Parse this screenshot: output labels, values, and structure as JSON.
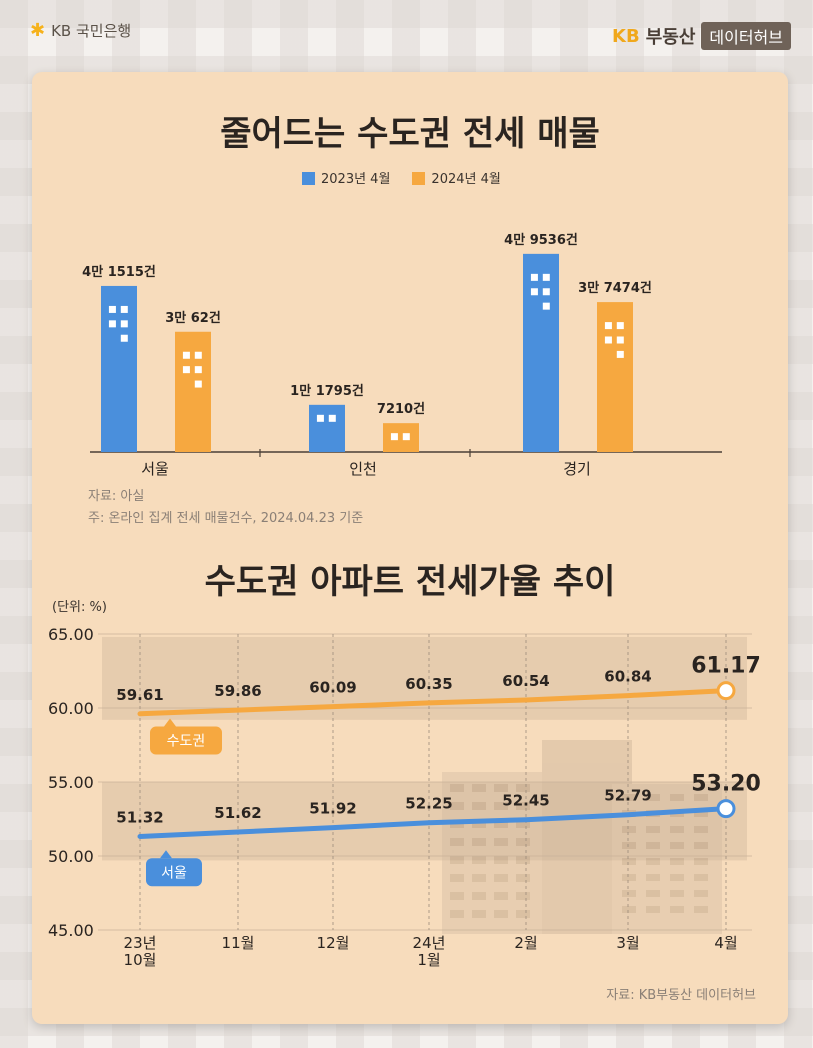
{
  "brand": {
    "bank": "KB 국민은행",
    "kb": "KB",
    "platform": "부동산",
    "hub": "데이터허브"
  },
  "chart1": {
    "title": "줄어드는 수도권 전세 매물",
    "source_line1": "자료: 아실",
    "source_line2": "주: 온라인 집계 전세 매물건수, 2024.04.23 기준"
  },
  "chart2": {
    "title": "수도권 아파트 전세가율 추이",
    "unit": "(단위: %)",
    "source": "자료: KB부동산 데이터허브"
  },
  "chart_data": [
    {
      "type": "bar",
      "title": "줄어드는 수도권 전세 매물",
      "categories": [
        "서울",
        "인천",
        "경기"
      ],
      "series": [
        {
          "name": "2023년 4월",
          "color": "#4a8fdc",
          "values": [
            41515,
            11795,
            49536
          ],
          "labels": [
            "4만 1515건",
            "1만 1795건",
            "4만 9536건"
          ]
        },
        {
          "name": "2024년 4월",
          "color": "#f6a840",
          "values": [
            30062,
            7210,
            37474
          ],
          "labels": [
            "3만 62건",
            "7210건",
            "3만 7474건"
          ]
        }
      ],
      "ylim": [
        0,
        50000
      ]
    },
    {
      "type": "line",
      "title": "수도권 아파트 전세가율 추이",
      "ylabel": "(단위: %)",
      "categories": [
        "23년\n10월",
        "11월",
        "12월",
        "24년\n1월",
        "2월",
        "3월",
        "4월"
      ],
      "y_ticks": [
        "65.00",
        "60.00",
        "55.00",
        "50.00",
        "45.00"
      ],
      "ylim": [
        45,
        65
      ],
      "series": [
        {
          "name": "수도권",
          "color": "#f6a840",
          "values": [
            59.61,
            59.86,
            60.09,
            60.35,
            60.54,
            60.84,
            61.17
          ],
          "labels": [
            "59.61",
            "59.86",
            "60.09",
            "60.35",
            "60.54",
            "60.84",
            "61.17"
          ]
        },
        {
          "name": "서울",
          "color": "#4a8fdc",
          "values": [
            51.32,
            51.62,
            51.92,
            52.25,
            52.45,
            52.79,
            53.2
          ],
          "labels": [
            "51.32",
            "51.62",
            "51.92",
            "52.25",
            "52.45",
            "52.79",
            "53.20"
          ]
        }
      ]
    }
  ]
}
